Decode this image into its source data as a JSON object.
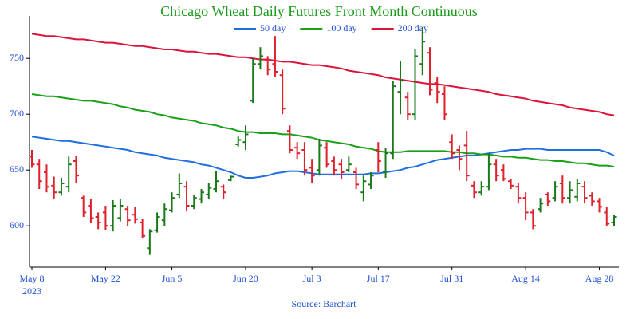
{
  "chart_data": {
    "type": "ohlc",
    "title": "Chicago Wheat Daily Futures Front Month Continuous",
    "source": "Source: Barchart",
    "x_year": "2023",
    "categories": [
      "May 8",
      null,
      null,
      null,
      null,
      null,
      null,
      null,
      null,
      null,
      "May 22",
      null,
      null,
      null,
      null,
      null,
      null,
      null,
      null,
      "Jun 5",
      null,
      null,
      null,
      null,
      null,
      null,
      null,
      null,
      null,
      "Jun 20",
      null,
      null,
      null,
      null,
      null,
      null,
      null,
      null,
      "Jul 3",
      null,
      null,
      null,
      null,
      null,
      null,
      null,
      null,
      "Jul 17",
      null,
      null,
      null,
      null,
      null,
      null,
      null,
      null,
      null,
      "Jul 31",
      null,
      null,
      null,
      null,
      null,
      null,
      null,
      null,
      null,
      "Aug 14",
      null,
      null,
      null,
      null,
      null,
      null,
      null,
      null,
      null,
      "Aug 28",
      null,
      null
    ],
    "open": [
      662,
      655,
      648,
      636,
      630,
      635,
      658,
      625,
      618,
      608,
      612,
      600,
      607,
      615,
      610,
      603,
      580,
      596,
      605,
      614,
      628,
      635,
      618,
      624,
      628,
      633,
      635,
      641,
      673,
      675,
      712,
      745,
      748,
      745,
      735,
      685,
      670,
      668,
      652,
      650,
      670,
      658,
      655,
      650,
      648,
      630,
      637,
      668,
      648,
      665,
      720,
      715,
      700,
      745,
      755,
      728,
      718,
      675,
      668,
      672,
      636,
      630,
      635,
      655,
      650,
      640,
      635,
      625,
      612,
      615,
      628,
      625,
      638,
      625,
      626,
      635,
      627,
      622,
      612,
      603
    ],
    "high": [
      668,
      660,
      655,
      644,
      643,
      662,
      663,
      627,
      624,
      612,
      618,
      623,
      624,
      618,
      617,
      606,
      597,
      612,
      620,
      630,
      647,
      640,
      628,
      633,
      638,
      649,
      637,
      645,
      680,
      690,
      750,
      760,
      752,
      770,
      740,
      690,
      675,
      675,
      660,
      678,
      675,
      662,
      660,
      662,
      652,
      645,
      648,
      675,
      670,
      730,
      748,
      720,
      758,
      778,
      760,
      733,
      725,
      682,
      672,
      685,
      640,
      640,
      665,
      660,
      655,
      642,
      638,
      630,
      615,
      625,
      630,
      640,
      645,
      640,
      642,
      640,
      630,
      625,
      617,
      610
    ],
    "low": [
      652,
      633,
      630,
      624,
      627,
      630,
      638,
      608,
      603,
      597,
      596,
      595,
      604,
      600,
      602,
      589,
      574,
      594,
      600,
      612,
      625,
      613,
      615,
      620,
      624,
      630,
      624,
      640,
      671,
      668,
      710,
      740,
      735,
      733,
      700,
      665,
      660,
      645,
      638,
      645,
      652,
      645,
      642,
      648,
      633,
      622,
      633,
      648,
      643,
      660,
      700,
      695,
      695,
      735,
      717,
      710,
      695,
      660,
      650,
      640,
      625,
      627,
      632,
      640,
      640,
      633,
      620,
      605,
      597,
      612,
      618,
      622,
      620,
      620,
      622,
      620,
      618,
      612,
      600,
      600
    ],
    "close": [
      655,
      640,
      635,
      630,
      638,
      655,
      645,
      612,
      607,
      603,
      600,
      618,
      618,
      605,
      606,
      591,
      595,
      608,
      615,
      625,
      638,
      618,
      625,
      630,
      634,
      640,
      630,
      644,
      677,
      682,
      745,
      752,
      740,
      738,
      705,
      668,
      665,
      650,
      645,
      672,
      655,
      650,
      648,
      655,
      637,
      640,
      645,
      658,
      665,
      725,
      730,
      700,
      752,
      765,
      722,
      720,
      700,
      665,
      660,
      645,
      630,
      635,
      655,
      645,
      642,
      636,
      625,
      612,
      600,
      620,
      622,
      635,
      625,
      632,
      638,
      625,
      622,
      617,
      602,
      608
    ],
    "up_color": "#1a7a1a",
    "down_color": "#e0202a",
    "series": [
      {
        "name": "50 day",
        "color": "#1f6fe0",
        "values": [
          680,
          679,
          678,
          677,
          676,
          676,
          675,
          674,
          673,
          672,
          671,
          670,
          669,
          668,
          666,
          665,
          664,
          663,
          661,
          660,
          659,
          658,
          657,
          655,
          654,
          652,
          650,
          648,
          645,
          643,
          643,
          644,
          645,
          647,
          648,
          649,
          649,
          648,
          647,
          646,
          646,
          646,
          646,
          646,
          646,
          646,
          647,
          647,
          648,
          649,
          650,
          652,
          653,
          655,
          657,
          659,
          660,
          661,
          662,
          663,
          663,
          664,
          665,
          666,
          667,
          668,
          668,
          669,
          669,
          669,
          668,
          668,
          668,
          668,
          668,
          668,
          668,
          668,
          666,
          663
        ]
      },
      {
        "name": "100 day",
        "color": "#1aa01a",
        "values": [
          718,
          717,
          716,
          716,
          715,
          714,
          713,
          712,
          712,
          711,
          710,
          709,
          707,
          706,
          704,
          703,
          702,
          700,
          699,
          697,
          696,
          695,
          694,
          692,
          691,
          690,
          688,
          687,
          685,
          684,
          684,
          683,
          683,
          683,
          682,
          682,
          681,
          680,
          679,
          677,
          676,
          675,
          674,
          673,
          671,
          670,
          669,
          667,
          666,
          666,
          666,
          667,
          667,
          667,
          667,
          667,
          667,
          666,
          666,
          665,
          665,
          664,
          664,
          663,
          662,
          662,
          661,
          661,
          660,
          659,
          659,
          658,
          658,
          657,
          656,
          656,
          655,
          654,
          654,
          653
        ]
      },
      {
        "name": "200 day",
        "color": "#dc143c",
        "values": [
          772,
          771,
          770,
          770,
          769,
          768,
          767,
          767,
          766,
          765,
          764,
          764,
          763,
          762,
          761,
          761,
          760,
          759,
          758,
          758,
          757,
          756,
          756,
          755,
          754,
          754,
          753,
          752,
          751,
          751,
          750,
          749,
          749,
          748,
          747,
          747,
          746,
          745,
          744,
          744,
          743,
          742,
          741,
          739,
          738,
          737,
          736,
          735,
          733,
          732,
          731,
          730,
          729,
          728,
          727,
          727,
          726,
          725,
          724,
          723,
          722,
          721,
          720,
          718,
          717,
          716,
          715,
          714,
          712,
          711,
          710,
          709,
          708,
          706,
          705,
          704,
          703,
          702,
          700,
          699
        ]
      }
    ],
    "ylim": [
      563,
      788
    ],
    "yticks": [
      600,
      650,
      700,
      750
    ],
    "legend": "top"
  }
}
